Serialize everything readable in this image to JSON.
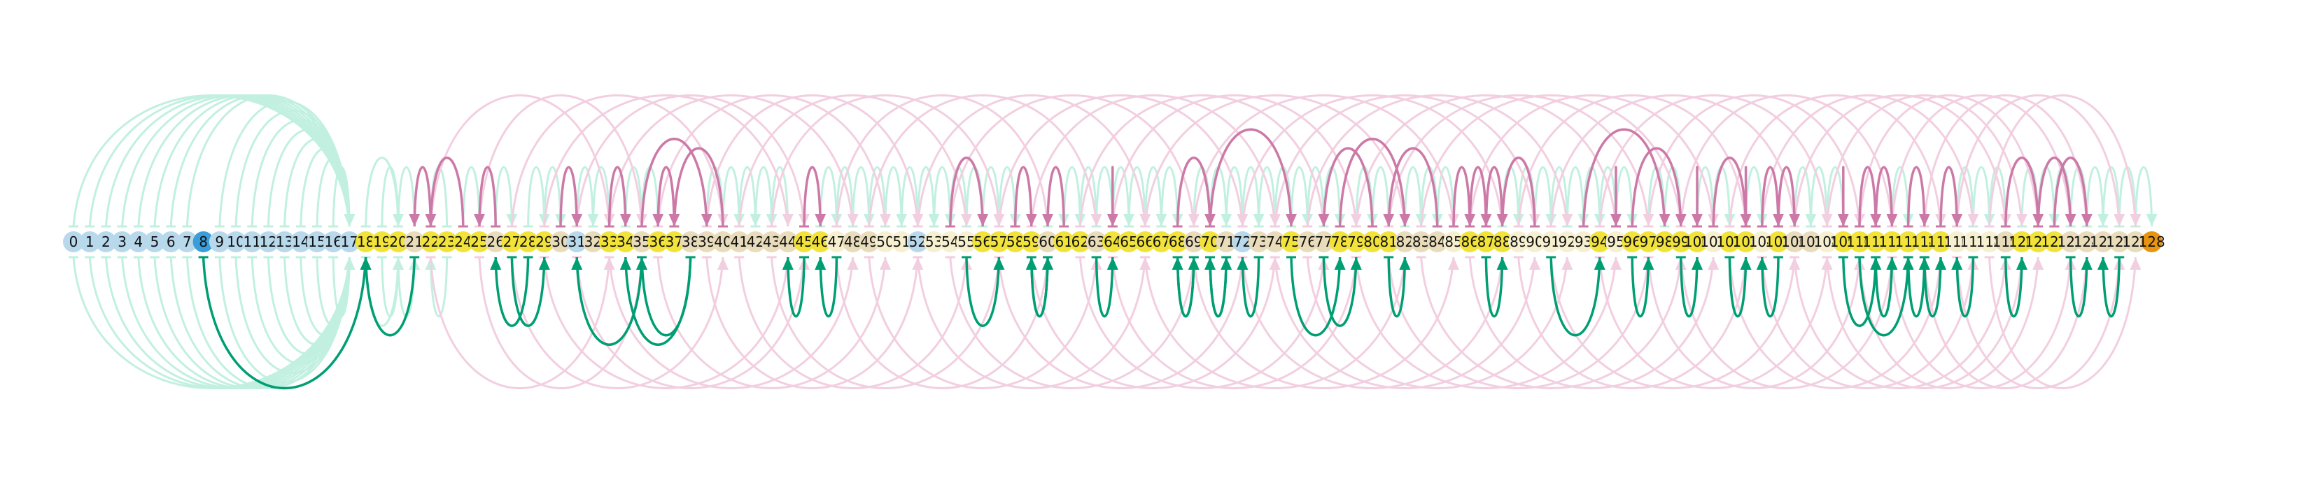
{
  "diagram": {
    "node_labels": [
      "0",
      "1",
      "2",
      "3",
      "4",
      "5",
      "6",
      "7",
      "8",
      "9",
      "10",
      "11",
      "12",
      "13",
      "14",
      "15",
      "16",
      "17",
      "18",
      "19",
      "20",
      "21",
      "22",
      "23",
      "24",
      "25",
      "26",
      "27",
      "28",
      "29",
      "30",
      "31",
      "32",
      "33",
      "34",
      "35",
      "36",
      "37",
      "38",
      "39",
      "40",
      "41",
      "42",
      "43",
      "44",
      "45",
      "46",
      "47",
      "48",
      "49",
      "50",
      "51",
      "52",
      "53",
      "54",
      "55",
      "56",
      "57",
      "58",
      "59",
      "60",
      "61",
      "62",
      "63",
      "64",
      "65",
      "66",
      "67",
      "68",
      "69",
      "70",
      "71",
      "72",
      "73",
      "74",
      "75",
      "76",
      "77",
      "78",
      "79",
      "80",
      "81",
      "82",
      "83",
      "84",
      "85",
      "86",
      "87",
      "88",
      "89",
      "90",
      "91",
      "92",
      "93",
      "94",
      "95",
      "96",
      "97",
      "98",
      "99",
      "100",
      "101",
      "102",
      "103",
      "104",
      "105",
      "106",
      "107",
      "108",
      "109",
      "110",
      "111",
      "112",
      "113",
      "114",
      "115",
      "116",
      "117",
      "118",
      "119",
      "120",
      "121",
      "122",
      "123",
      "124",
      "125",
      "126",
      "127",
      "128"
    ],
    "node_colors": {
      "blue": "#b8d8ec",
      "yellow": "#f2e33a",
      "sand": "#e9dcbb",
      "cream": "#f7f0d0",
      "highlight_blue": "#3a9ed9",
      "highlight_orange": "#e89410"
    },
    "node_color_keys": [
      "blue",
      "blue",
      "blue",
      "blue",
      "blue",
      "blue",
      "blue",
      "blue",
      "highlight_blue",
      "blue",
      "blue",
      "blue",
      "blue",
      "blue",
      "blue",
      "blue",
      "blue",
      "blue",
      "yellow",
      "yellow",
      "yellow",
      "sand",
      "yellow",
      "yellow",
      "yellow",
      "yellow",
      "sand",
      "yellow",
      "yellow",
      "yellow",
      "sand",
      "blue",
      "sand",
      "yellow",
      "yellow",
      "sand",
      "yellow",
      "yellow",
      "sand",
      "sand",
      "sand",
      "sand",
      "sand",
      "sand",
      "sand",
      "yellow",
      "yellow",
      "cream",
      "sand",
      "sand",
      "cream",
      "cream",
      "blue",
      "cream",
      "cream",
      "cream",
      "yellow",
      "yellow",
      "yellow",
      "yellow",
      "sand",
      "yellow",
      "yellow",
      "sand",
      "yellow",
      "yellow",
      "yellow",
      "yellow",
      "yellow",
      "sand",
      "yellow",
      "sand",
      "blue",
      "sand",
      "sand",
      "yellow",
      "sand",
      "sand",
      "yellow",
      "yellow",
      "yellow",
      "yellow",
      "sand",
      "sand",
      "sand",
      "cream",
      "yellow",
      "yellow",
      "yellow",
      "cream",
      "cream",
      "cream",
      "cream",
      "cream",
      "yellow",
      "cream",
      "yellow",
      "yellow",
      "yellow",
      "yellow",
      "yellow",
      "cream",
      "yellow",
      "yellow",
      "cream",
      "yellow",
      "sand",
      "sand",
      "cream",
      "yellow",
      "yellow",
      "yellow",
      "yellow",
      "yellow",
      "yellow",
      "yellow",
      "cream",
      "cream",
      "cream",
      "sand",
      "yellow",
      "yellow",
      "yellow",
      "sand",
      "sand",
      "sand",
      "sand",
      "sand",
      "highlight_orange",
      "sand"
    ],
    "edge_colors": {
      "green": "#009e73",
      "pink": "#cc79a7",
      "faint_green": "#c2f0e0",
      "faint_pink": "#f2cfe0"
    },
    "green_edges": [
      [
        8,
        18
      ],
      [
        21,
        18
      ],
      [
        28,
        26
      ],
      [
        27,
        29
      ],
      [
        35,
        31
      ],
      [
        38,
        34
      ],
      [
        38,
        35
      ],
      [
        45,
        44
      ],
      [
        47,
        46
      ],
      [
        55,
        57
      ],
      [
        59,
        60
      ],
      [
        60,
        59
      ],
      [
        63,
        64
      ],
      [
        69,
        68
      ],
      [
        68,
        69
      ],
      [
        70,
        71
      ],
      [
        71,
        70
      ],
      [
        73,
        72
      ],
      [
        75,
        78
      ],
      [
        77,
        79
      ],
      [
        81,
        82
      ],
      [
        87,
        88
      ],
      [
        91,
        94
      ],
      [
        96,
        97
      ],
      [
        99,
        100
      ],
      [
        102,
        103
      ],
      [
        105,
        104
      ],
      [
        109,
        111
      ],
      [
        110,
        113
      ],
      [
        111,
        112
      ],
      [
        113,
        114
      ],
      [
        114,
        115
      ],
      [
        117,
        116
      ],
      [
        119,
        120
      ],
      [
        123,
        124
      ],
      [
        126,
        125
      ]
    ],
    "pink_edges": [
      [
        22,
        21
      ],
      [
        24,
        22
      ],
      [
        26,
        25
      ],
      [
        30,
        31
      ],
      [
        33,
        34
      ],
      [
        35,
        39
      ],
      [
        40,
        37
      ],
      [
        37,
        36
      ],
      [
        54,
        56
      ],
      [
        45,
        46
      ],
      [
        58,
        59
      ],
      [
        61,
        60
      ],
      [
        64,
        64
      ],
      [
        68,
        70
      ],
      [
        70,
        75
      ],
      [
        78,
        82
      ],
      [
        80,
        77
      ],
      [
        84,
        81
      ],
      [
        85,
        86
      ],
      [
        86,
        87
      ],
      [
        87,
        88
      ],
      [
        90,
        88
      ],
      [
        93,
        98
      ],
      [
        95,
        95
      ],
      [
        96,
        99
      ],
      [
        100,
        100
      ],
      [
        101,
        103
      ],
      [
        103,
        103
      ],
      [
        104,
        105
      ],
      [
        105,
        106
      ],
      [
        109,
        109
      ],
      [
        110,
        111
      ],
      [
        111,
        112
      ],
      [
        113,
        114
      ],
      [
        115,
        116
      ],
      [
        119,
        121
      ],
      [
        121,
        123
      ],
      [
        122,
        124
      ]
    ],
    "faint_green_edges": [
      [
        0,
        17
      ],
      [
        1,
        17
      ],
      [
        2,
        17
      ],
      [
        3,
        17
      ],
      [
        4,
        17
      ],
      [
        5,
        17
      ],
      [
        6,
        17
      ],
      [
        7,
        17
      ],
      [
        9,
        17
      ],
      [
        10,
        17
      ],
      [
        11,
        17
      ],
      [
        12,
        17
      ],
      [
        13,
        17
      ],
      [
        14,
        17
      ],
      [
        15,
        17
      ],
      [
        16,
        17
      ],
      [
        18,
        20
      ],
      [
        19,
        20
      ],
      [
        20,
        21
      ],
      [
        23,
        22
      ],
      [
        24,
        25
      ],
      [
        26,
        27
      ],
      [
        28,
        29
      ],
      [
        29,
        30
      ],
      [
        30,
        31
      ],
      [
        31,
        32
      ],
      [
        32,
        33
      ],
      [
        34,
        35
      ],
      [
        35,
        36
      ],
      [
        36,
        37
      ],
      [
        39,
        40
      ],
      [
        40,
        41
      ],
      [
        41,
        42
      ],
      [
        42,
        43
      ],
      [
        43,
        44
      ],
      [
        46,
        47
      ],
      [
        47,
        48
      ],
      [
        48,
        49
      ],
      [
        49,
        50
      ],
      [
        50,
        51
      ],
      [
        51,
        52
      ],
      [
        52,
        53
      ],
      [
        53,
        54
      ],
      [
        54,
        55
      ],
      [
        55,
        56
      ],
      [
        56,
        57
      ],
      [
        57,
        58
      ],
      [
        58,
        59
      ],
      [
        60,
        61
      ],
      [
        61,
        62
      ],
      [
        62,
        63
      ],
      [
        63,
        64
      ],
      [
        64,
        65
      ],
      [
        65,
        66
      ],
      [
        66,
        67
      ],
      [
        67,
        68
      ],
      [
        69,
        70
      ],
      [
        70,
        71
      ],
      [
        71,
        72
      ],
      [
        72,
        73
      ],
      [
        73,
        74
      ],
      [
        74,
        75
      ],
      [
        75,
        76
      ],
      [
        76,
        77
      ],
      [
        77,
        78
      ],
      [
        79,
        80
      ],
      [
        80,
        81
      ],
      [
        82,
        83
      ],
      [
        83,
        84
      ],
      [
        84,
        85
      ],
      [
        85,
        86
      ],
      [
        88,
        89
      ],
      [
        89,
        90
      ],
      [
        90,
        91
      ],
      [
        91,
        92
      ],
      [
        92,
        93
      ],
      [
        93,
        94
      ],
      [
        94,
        95
      ],
      [
        95,
        96
      ],
      [
        97,
        98
      ],
      [
        98,
        99
      ],
      [
        100,
        101
      ],
      [
        101,
        102
      ],
      [
        103,
        104
      ],
      [
        104,
        105
      ],
      [
        106,
        107
      ],
      [
        107,
        108
      ],
      [
        108,
        109
      ],
      [
        112,
        113
      ],
      [
        115,
        116
      ],
      [
        116,
        117
      ],
      [
        117,
        118
      ],
      [
        118,
        119
      ],
      [
        120,
        121
      ],
      [
        121,
        122
      ],
      [
        122,
        123
      ],
      [
        123,
        124
      ],
      [
        124,
        125
      ],
      [
        125,
        126
      ],
      [
        126,
        127
      ],
      [
        127,
        128
      ]
    ],
    "faint_pink_edges": [
      [
        22,
        33
      ],
      [
        25,
        35
      ],
      [
        27,
        40
      ],
      [
        29,
        44
      ],
      [
        31,
        45
      ],
      [
        33,
        48
      ],
      [
        36,
        50
      ],
      [
        39,
        52
      ],
      [
        41,
        55
      ],
      [
        43,
        57
      ],
      [
        47,
        60
      ],
      [
        49,
        63
      ],
      [
        52,
        66
      ],
      [
        54,
        69
      ],
      [
        57,
        72
      ],
      [
        59,
        74
      ],
      [
        62,
        77
      ],
      [
        64,
        79
      ],
      [
        66,
        82
      ],
      [
        69,
        85
      ],
      [
        72,
        88
      ],
      [
        74,
        90
      ],
      [
        76,
        92
      ],
      [
        79,
        95
      ],
      [
        81,
        97
      ],
      [
        83,
        99
      ],
      [
        86,
        101
      ],
      [
        89,
        103
      ],
      [
        91,
        106
      ],
      [
        94,
        108
      ],
      [
        97,
        110
      ],
      [
        99,
        112
      ],
      [
        102,
        115
      ],
      [
        104,
        117
      ],
      [
        106,
        119
      ],
      [
        108,
        120
      ],
      [
        110,
        121
      ],
      [
        112,
        123
      ],
      [
        114,
        124
      ],
      [
        116,
        126
      ],
      [
        118,
        127
      ]
    ]
  }
}
